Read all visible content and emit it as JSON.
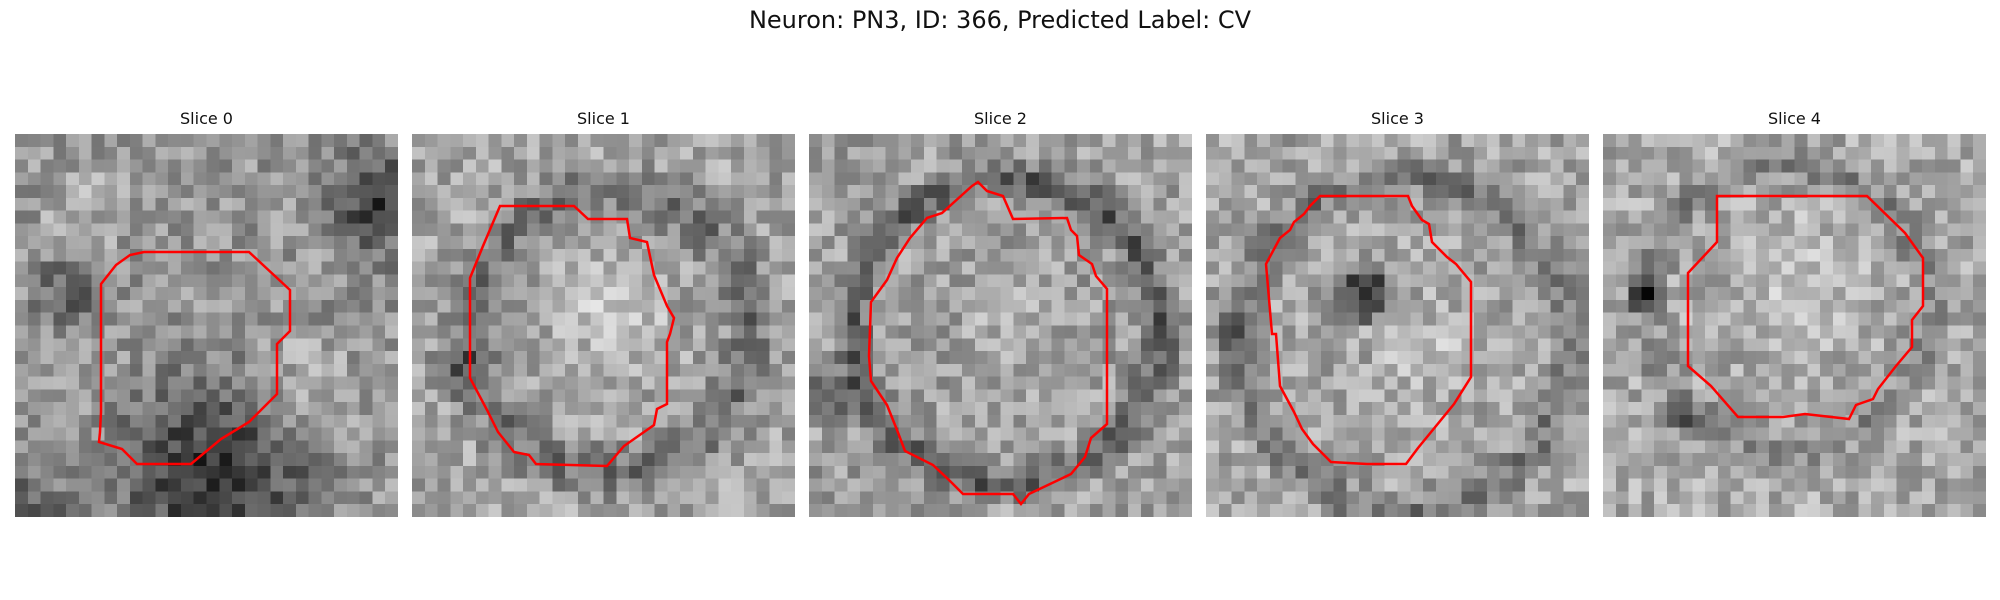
{
  "figure": {
    "title": "Neuron: PN3, ID: 366, Predicted Label: CV",
    "outline_color": "#ff0000"
  },
  "slices": [
    {
      "label": "Slice 0"
    },
    {
      "label": "Slice 1"
    },
    {
      "label": "Slice 2"
    },
    {
      "label": "Slice 3"
    },
    {
      "label": "Slice 4"
    }
  ]
}
